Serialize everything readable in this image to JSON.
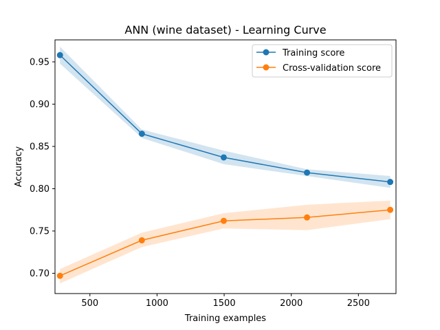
{
  "chart_data": {
    "type": "line",
    "title": "ANN (wine dataset) - Learning Curve",
    "xlabel": "Training examples",
    "ylabel": "Accuracy",
    "xlim": [
      240,
      2780
    ],
    "ylim": [
      0.676,
      0.976
    ],
    "xticks": [
      500,
      1000,
      1500,
      2000,
      2500
    ],
    "yticks": [
      0.7,
      0.75,
      0.8,
      0.85,
      0.9,
      0.95
    ],
    "xtick_labels": [
      "500",
      "1000",
      "1500",
      "2000",
      "2500"
    ],
    "ytick_labels": [
      "0.70",
      "0.75",
      "0.80",
      "0.85",
      "0.90",
      "0.95"
    ],
    "grid": false,
    "legend_position": "upper right",
    "x": [
      277,
      887,
      1497,
      2117,
      2737
    ],
    "series": [
      {
        "name": "Training score",
        "color": "#1f77b4",
        "marker": "circle",
        "values": [
          0.958,
          0.865,
          0.837,
          0.819,
          0.808
        ],
        "band_upper": [
          0.968,
          0.87,
          0.845,
          0.823,
          0.815
        ],
        "band_lower": [
          0.948,
          0.86,
          0.829,
          0.815,
          0.801
        ]
      },
      {
        "name": "Cross-validation score",
        "color": "#ff7f0e",
        "marker": "circle",
        "values": [
          0.697,
          0.739,
          0.762,
          0.766,
          0.775
        ],
        "band_upper": [
          0.705,
          0.748,
          0.771,
          0.781,
          0.786
        ],
        "band_lower": [
          0.688,
          0.731,
          0.753,
          0.751,
          0.764
        ]
      }
    ]
  }
}
